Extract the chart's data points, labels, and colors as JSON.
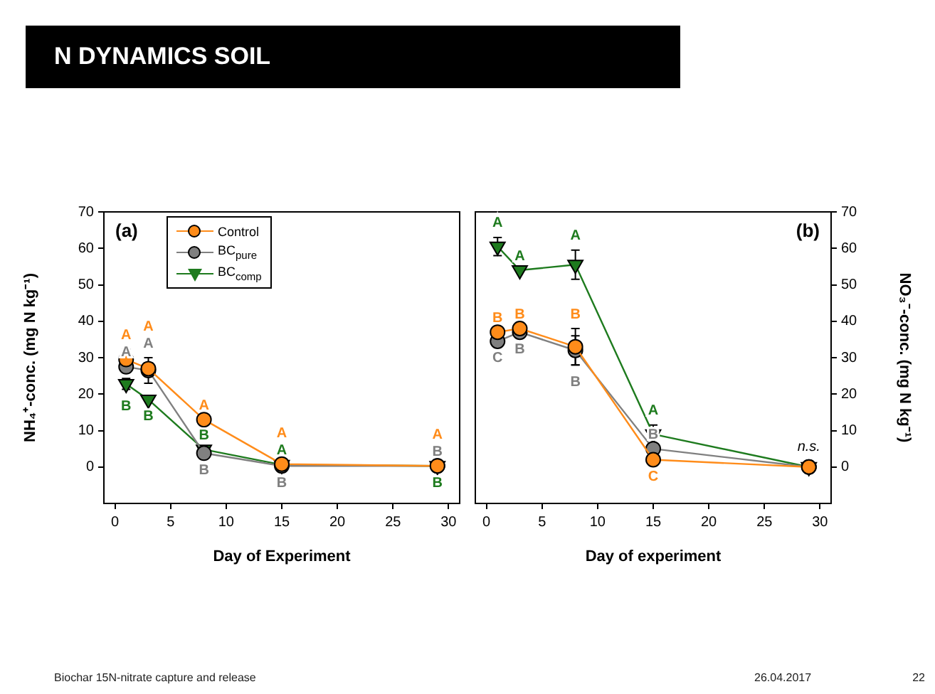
{
  "chart_data": [
    {
      "type": "other",
      "title": "N DYNAMICS SOIL",
      "annotations": [
        "Biochar 15N-nitrate capture and release",
        "26.04.2017",
        "22"
      ]
    },
    {
      "type": "line",
      "title": "(a)",
      "x": [
        1,
        3,
        8,
        15,
        29
      ],
      "xlabel": "Day of Experiment",
      "ylabel": "NH₄⁺-conc. (mg N kg⁻¹)",
      "xlim": [
        -1,
        31
      ],
      "xticks": [
        0,
        5,
        10,
        15,
        20,
        25,
        30
      ],
      "ylim": [
        -10,
        70
      ],
      "yticks": [
        0,
        10,
        20,
        30,
        40,
        50,
        60,
        70
      ],
      "legend": "top left",
      "series": [
        {
          "name": "Control",
          "color": "#ff8c1a",
          "marker": "circle",
          "values": [
            29.5,
            27,
            13,
            0.8,
            0.3
          ],
          "errors": [
            2.8,
            null,
            null,
            null,
            null
          ],
          "value_labels": [
            "A",
            "A",
            "A",
            "A",
            "A"
          ]
        },
        {
          "name": "BC$_{pure}$",
          "color": "#808080",
          "marker": "circle",
          "values": [
            27.5,
            26.5,
            3.8,
            0.3,
            0.3
          ],
          "errors": [
            null,
            3.5,
            null,
            null,
            null
          ],
          "value_labels": [
            "A",
            "A",
            "B",
            "B",
            "B"
          ]
        },
        {
          "name": "BC$_{comp}$",
          "color": "#1e7b1e",
          "marker": "triangle",
          "values": [
            22.8,
            18.5,
            4.8,
            0.6,
            0.3
          ],
          "errors": [
            1.5,
            null,
            null,
            null,
            null
          ],
          "value_labels": [
            "B",
            "B",
            "B",
            "A",
            "B"
          ]
        }
      ]
    },
    {
      "type": "line",
      "title": "(b)",
      "x": [
        1,
        3,
        8,
        15,
        29
      ],
      "xlabel": "Day of experiment",
      "y2label": "NO₃⁻-conc. (mg N kg⁻¹)",
      "xlim": [
        -1,
        31
      ],
      "xticks": [
        0,
        5,
        10,
        15,
        20,
        25,
        30
      ],
      "y2lim": [
        -10,
        70
      ],
      "y2ticks": [
        0,
        10,
        20,
        30,
        40,
        50,
        60,
        70
      ],
      "annotations": [
        "n.s."
      ],
      "series": [
        {
          "color": "#ff8c1a",
          "marker": "circle",
          "axis": "y2",
          "values": [
            37,
            38,
            33,
            2,
            0
          ],
          "errors": [
            null,
            null,
            5,
            null,
            null
          ],
          "value_labels": [
            "B",
            "B",
            "B",
            "C",
            null
          ]
        },
        {
          "color": "#808080",
          "marker": "circle",
          "axis": "y2",
          "values": [
            34.5,
            37,
            32,
            5,
            0
          ],
          "errors": [
            null,
            null,
            4,
            null,
            null
          ],
          "value_labels": [
            "C",
            "B",
            "B",
            "B",
            null
          ]
        },
        {
          "color": "#1e7b1e",
          "marker": "triangle",
          "axis": "y2",
          "values": [
            60.5,
            54,
            55.5,
            9,
            0
          ],
          "errors": [
            2.5,
            null,
            4,
            2.5,
            null
          ],
          "value_labels": [
            "A",
            "A",
            "A",
            "A",
            null
          ]
        }
      ]
    }
  ]
}
